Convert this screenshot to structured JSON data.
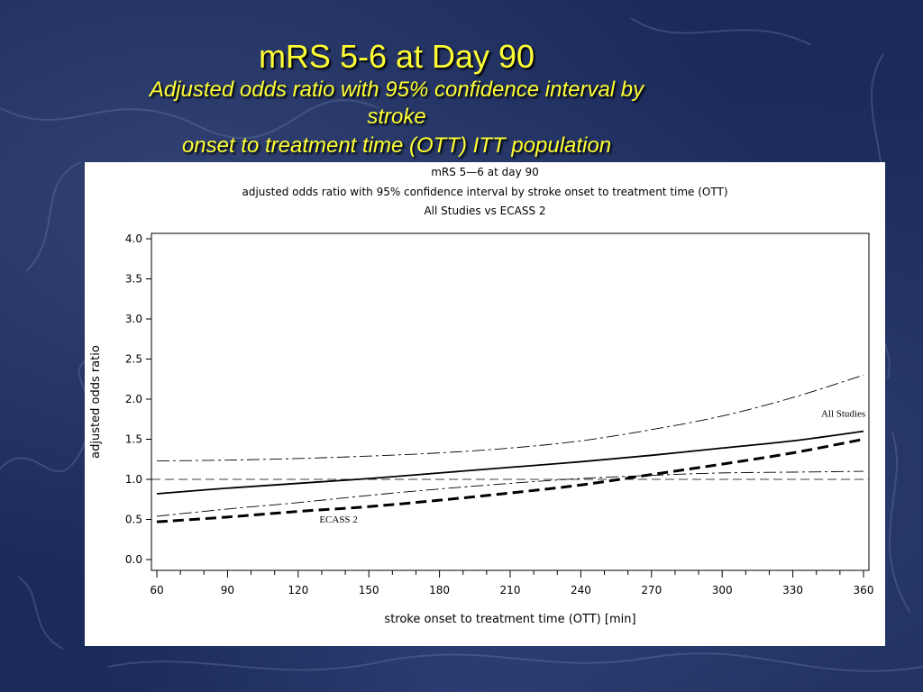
{
  "slide": {
    "title": "mRS 5-6 at Day 90",
    "subtitle_line1": "Adjusted odds ratio with 95% confidence interval by",
    "subtitle_line2": "stroke",
    "subtitle_line3": "onset to treatment time (OTT) ITT population"
  },
  "colors": {
    "background": "#1a2a5a",
    "title": "#ffff33",
    "panel": "#ffffff",
    "ink": "#000000"
  },
  "chart_data": {
    "type": "line",
    "title_lines": [
      "mRS 5—6 at day 90",
      "adjusted odds ratio with 95% confidence interval by stroke onset to treatment time (OTT)",
      "All Studies vs ECASS 2"
    ],
    "xlabel": "stroke onset to treatment time (OTT) [min]",
    "ylabel": "adjusted odds ratio",
    "xlim": [
      60,
      360
    ],
    "ylim": [
      0,
      4
    ],
    "x_ticks": [
      60,
      90,
      120,
      150,
      180,
      210,
      240,
      270,
      300,
      330,
      360
    ],
    "y_ticks": [
      "0.0",
      "0.5",
      "1.0",
      "1.5",
      "2.0",
      "2.5",
      "3.0",
      "3.5",
      "4.0"
    ],
    "x_minor_step": 10,
    "reference_line": 1.0,
    "grid": false,
    "annotations": [
      {
        "text": "All Studies",
        "x": 342,
        "y": 1.78
      },
      {
        "text": "ECASS 2",
        "x": 129,
        "y": 0.46
      }
    ],
    "series": [
      {
        "style": "solid",
        "x": [
          60,
          90,
          120,
          150,
          180,
          210,
          240,
          270,
          300,
          330,
          360
        ],
        "y": [
          0.82,
          0.89,
          0.95,
          1.01,
          1.08,
          1.15,
          1.22,
          1.3,
          1.39,
          1.48,
          1.6
        ]
      },
      {
        "style": "dash-dot",
        "x": [
          60,
          90,
          120,
          150,
          180,
          210,
          240,
          270,
          300,
          330,
          360
        ],
        "y": [
          1.23,
          1.24,
          1.26,
          1.29,
          1.33,
          1.39,
          1.48,
          1.62,
          1.79,
          2.02,
          2.3
        ]
      },
      {
        "style": "dash-dot",
        "x": [
          60,
          90,
          120,
          150,
          180,
          210,
          240,
          270,
          300,
          330,
          360
        ],
        "y": [
          0.54,
          0.63,
          0.71,
          0.8,
          0.88,
          0.95,
          1.01,
          1.05,
          1.08,
          1.09,
          1.1
        ]
      },
      {
        "style": "bold-dashed",
        "x": [
          60,
          90,
          120,
          150,
          180,
          210,
          240,
          270,
          300,
          330,
          360
        ],
        "y": [
          0.47,
          0.53,
          0.6,
          0.66,
          0.74,
          0.83,
          0.93,
          1.06,
          1.19,
          1.33,
          1.5
        ]
      }
    ]
  }
}
